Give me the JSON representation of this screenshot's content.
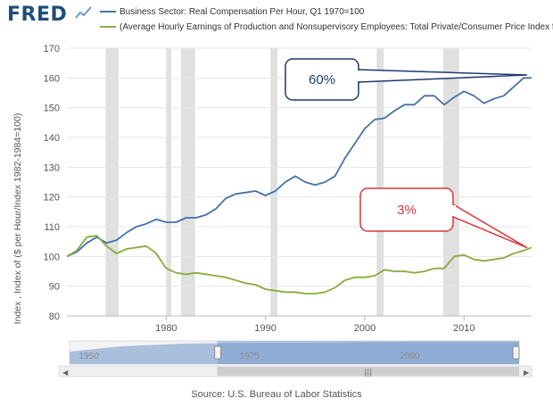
{
  "header": {
    "logo_text": "FRED",
    "series1_label": "Business Sector: Real Compensation Per Hour, Q1 1970=100",
    "series2_label": "(Average Hourly Earnings of Production and Nonsupervisory Employees: Total Private/Consumer Price Index fo..."
  },
  "colors": {
    "series1": "#4572a7",
    "series2": "#8bab3e",
    "recession": "#e0e0e0",
    "callout_blue": "#1f3a6e",
    "callout_red": "#d9383a"
  },
  "chart_data": {
    "type": "line",
    "ylabel": "Index , Index of ($ per Hour/Index 1982-1984=100)",
    "ylim": [
      80,
      170
    ],
    "xlim": [
      1970,
      2016.8
    ],
    "yticks": [
      80,
      90,
      100,
      110,
      120,
      130,
      140,
      150,
      160,
      170
    ],
    "xticks": [
      1980,
      1990,
      2000,
      2010
    ],
    "recessions": [
      [
        1973.9,
        1975.2
      ],
      [
        1980.0,
        1980.5
      ],
      [
        1981.5,
        1982.9
      ],
      [
        1990.5,
        1991.2
      ],
      [
        2001.2,
        2001.9
      ],
      [
        2007.9,
        2009.5
      ]
    ],
    "series": [
      {
        "name": "Business Sector: Real Compensation Per Hour, Q1 1970=100",
        "x": [
          1970,
          1971,
          1972,
          1973,
          1974,
          1975,
          1976,
          1977,
          1978,
          1979,
          1980,
          1981,
          1982,
          1983,
          1984,
          1985,
          1986,
          1987,
          1988,
          1989,
          1990,
          1991,
          1992,
          1993,
          1994,
          1995,
          1996,
          1997,
          1998,
          1999,
          2000,
          2001,
          2002,
          2003,
          2004,
          2005,
          2006,
          2007,
          2008,
          2009,
          2010,
          2011,
          2012,
          2013,
          2014,
          2015,
          2016,
          2016.8
        ],
        "values": [
          100,
          101.5,
          104.5,
          106.5,
          104.5,
          105.5,
          108,
          110,
          111,
          112.5,
          111.5,
          111.5,
          113,
          113,
          114,
          116,
          119.5,
          121,
          121.5,
          122,
          120.5,
          122,
          125,
          127,
          125,
          124,
          125,
          127,
          133,
          138,
          143,
          146,
          146.5,
          149,
          151,
          151,
          154,
          154,
          151,
          153.5,
          155.5,
          154,
          151.5,
          153,
          154,
          157,
          160,
          160
        ]
      },
      {
        "name": "Average Hourly Earnings of Production and Nonsupervisory Employees: Total Private/Consumer Price Index",
        "x": [
          1970,
          1971,
          1972,
          1973,
          1974,
          1975,
          1976,
          1977,
          1978,
          1979,
          1980,
          1981,
          1982,
          1983,
          1984,
          1985,
          1986,
          1987,
          1988,
          1989,
          1990,
          1991,
          1992,
          1993,
          1994,
          1995,
          1996,
          1997,
          1998,
          1999,
          2000,
          2001,
          2002,
          2003,
          2004,
          2005,
          2006,
          2007,
          2008,
          2009,
          2010,
          2011,
          2012,
          2013,
          2014,
          2015,
          2016,
          2016.8
        ],
        "values": [
          100,
          102,
          106.5,
          107,
          103.5,
          101,
          102.5,
          103,
          103.5,
          101,
          96,
          94.5,
          94,
          94.5,
          94,
          93.5,
          93,
          92,
          91,
          90.5,
          89,
          88.5,
          88,
          88,
          87.5,
          87.5,
          88,
          89.5,
          92,
          93,
          93,
          93.5,
          95.5,
          95,
          95,
          94.5,
          95,
          96,
          96,
          100,
          100.5,
          99,
          98.5,
          99,
          99.5,
          101,
          102,
          103
        ]
      }
    ],
    "annotations": [
      {
        "text": "60%",
        "color": "#1f3a6e",
        "target_x": 2016.3,
        "target_y": 161
      },
      {
        "text": "3%",
        "color": "#d9383a",
        "target_x": 2016.3,
        "target_y": 103
      }
    ],
    "navigator_labels": [
      "1950",
      "1975",
      "2000"
    ]
  },
  "footer": {
    "source": "Source: U.S. Bureau of Labor Statistics"
  }
}
